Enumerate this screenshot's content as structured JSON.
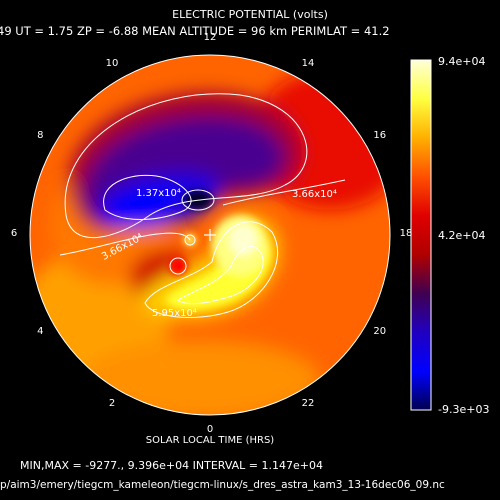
{
  "header": {
    "title": "ELECTRIC POTENTIAL (volts)",
    "subtitle": "49   UT =   1.75   ZP =   -6.88   MEAN ALTITUDE =   96 km   PERIMLAT =  41.2"
  },
  "hour_labels": [
    {
      "label": "12",
      "hour": 12
    },
    {
      "label": "10",
      "hour": 10
    },
    {
      "label": "8",
      "hour": 8
    },
    {
      "label": "6",
      "hour": 6
    },
    {
      "label": "4",
      "hour": 4
    },
    {
      "label": "2",
      "hour": 2
    },
    {
      "label": "0",
      "hour": 0
    },
    {
      "label": "22",
      "hour": 22
    },
    {
      "label": "20",
      "hour": 20
    },
    {
      "label": "18",
      "hour": 18
    },
    {
      "label": "16",
      "hour": 16
    },
    {
      "label": "14",
      "hour": 14
    }
  ],
  "contour_labels": [
    {
      "text": "1.37x10⁴"
    },
    {
      "text": "3.66x10⁴"
    },
    {
      "text": "3.66x10⁴"
    },
    {
      "text": "5.95x10⁴"
    }
  ],
  "colorbar": {
    "max_label": "9.4e+04",
    "mid_label": "4.2e+04",
    "min_label": "-9.3e+03",
    "colors": [
      "#ffffd8",
      "#ffff40",
      "#ffb000",
      "#ff5000",
      "#e00000",
      "#b00000",
      "#400050",
      "#2000c0",
      "#0000ff",
      "#000050"
    ]
  },
  "xlabel": "SOLAR LOCAL TIME (HRS)",
  "footer": {
    "stats": "MIN,MAX =     -9277., 9.396e+04  INTERVAL =  1.147e+04",
    "path": "p/aim3/emery/tiegcm_kameleon/tiegcm-linux/s_dres_astra_kam3_13-16dec06_09.nc"
  }
}
